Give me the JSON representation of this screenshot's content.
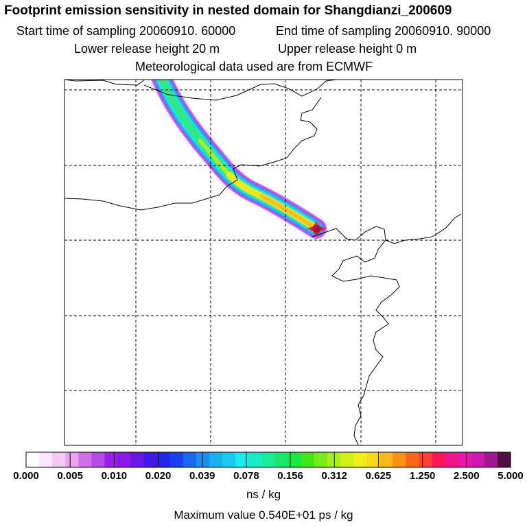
{
  "header": {
    "title": "Footprint emission sensitivity in nested domain for Shangdianzi_200609",
    "start_time": "Start time of sampling 20060910. 60000",
    "end_time": "End time of sampling 20060910. 90000",
    "lower_height": "Lower release height   20 m",
    "upper_height": "Upper release height    0 m",
    "met_data": "Meteorological data used are from ECMWF"
  },
  "colorbar": {
    "ticks": [
      "0.000",
      "0.005",
      "0.010",
      "0.020",
      "0.039",
      "0.078",
      "0.156",
      "0.312",
      "0.625",
      "1.250",
      "2.500",
      "5.000"
    ],
    "colors": [
      "#ffffff",
      "#fbe6fb",
      "#f3c8f3",
      "#e9a4ee",
      "#d070e8",
      "#b44ae8",
      "#9a1ef2",
      "#8a18e6",
      "#6a18e8",
      "#4218ea",
      "#2626ee",
      "#1a40f0",
      "#1868f2",
      "#1890f2",
      "#18b0f0",
      "#18ccee",
      "#18ecec",
      "#18ecc4",
      "#18ec98",
      "#18e86c",
      "#18e840",
      "#40e818",
      "#78ec18",
      "#a8ee18",
      "#d0f018",
      "#f0f018",
      "#f8d818",
      "#f8b818",
      "#f89018",
      "#f86818",
      "#f84038",
      "#f81858",
      "#f01888",
      "#e818a8",
      "#d018b0",
      "#a01890",
      "#501040"
    ],
    "unit": "ns / kg",
    "max_value": "Maximum value  0.540E+01 ps / kg"
  },
  "map": {
    "plume_colors": [
      "#e060f0",
      "#a050f0",
      "#2aa8f0",
      "#18e8e0",
      "#30e880",
      "#a8ee20",
      "#f0e818",
      "#f8c018"
    ],
    "receptor_color": "#d01848"
  }
}
